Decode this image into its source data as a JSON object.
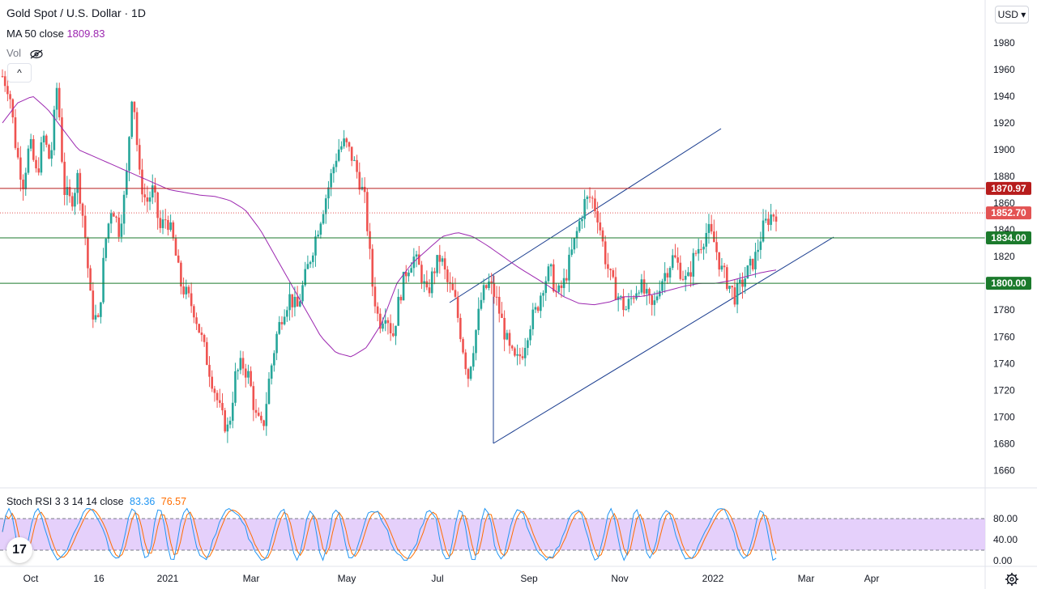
{
  "header": {
    "symbol_title": "Gold Spot / U.S. Dollar · 1D",
    "ma_label": "MA 50 close",
    "ma_value": "1809.83",
    "vol_label": "Vol",
    "collapse_glyph": "^",
    "currency_label": "USD ▾"
  },
  "indicator": {
    "label": "Stoch RSI 3 3 14 14 close",
    "k_value": "83.36",
    "d_value": "76.57",
    "axis_ticks": [
      "80.00",
      "40.00",
      "0.00"
    ],
    "upper_band": 80,
    "lower_band": 20,
    "band_color": "#e1c8fa",
    "k_color": "#2196f3",
    "d_color": "#ff6d00"
  },
  "icons": {
    "logo": "tradingview-logo-icon",
    "eye": "eye-crossed-icon",
    "settings": "gear-icon"
  },
  "chart_data": {
    "type": "line",
    "title": "Gold Spot / U.S. Dollar · 1D",
    "ylim": [
      1650,
      1995
    ],
    "y_ticks": [
      1660,
      1680,
      1700,
      1720,
      1740,
      1760,
      1780,
      1800,
      1820,
      1840,
      1860,
      1880,
      1900,
      1920,
      1940,
      1960,
      1980
    ],
    "x_tick_labels": [
      "Oct",
      "16",
      "2021",
      "Mar",
      "May",
      "Jul",
      "Sep",
      "Nov",
      "2022",
      "Mar",
      "Apr"
    ],
    "price_path": [
      1955,
      1945,
      1900,
      1875,
      1905,
      1880,
      1910,
      1890,
      1950,
      1870,
      1860,
      1880,
      1840,
      1780,
      1770,
      1830,
      1860,
      1840,
      1870,
      1950,
      1880,
      1860,
      1870,
      1840,
      1850,
      1830,
      1800,
      1790,
      1780,
      1760,
      1740,
      1720,
      1700,
      1690,
      1730,
      1740,
      1730,
      1700,
      1690,
      1730,
      1760,
      1780,
      1790,
      1780,
      1800,
      1820,
      1840,
      1860,
      1880,
      1900,
      1905,
      1895,
      1880,
      1860,
      1800,
      1770,
      1780,
      1760,
      1790,
      1810,
      1820,
      1810,
      1790,
      1810,
      1820,
      1800,
      1790,
      1760,
      1730,
      1760,
      1790,
      1800,
      1790,
      1770,
      1750,
      1740,
      1750,
      1770,
      1780,
      1800,
      1810,
      1790,
      1800,
      1820,
      1840,
      1860,
      1865,
      1850,
      1820,
      1800,
      1790,
      1780,
      1790,
      1800,
      1790,
      1780,
      1800,
      1810,
      1820,
      1810,
      1800,
      1820,
      1830,
      1840,
      1830,
      1810,
      1800,
      1790,
      1800,
      1810,
      1820,
      1840,
      1850,
      1853
    ],
    "ma50_path": [
      1920,
      1935,
      1940,
      1930,
      1915,
      1900,
      1895,
      1890,
      1885,
      1880,
      1875,
      1870,
      1868,
      1866,
      1865,
      1862,
      1855,
      1840,
      1820,
      1800,
      1780,
      1760,
      1748,
      1745,
      1752,
      1770,
      1800,
      1815,
      1825,
      1835,
      1838,
      1835,
      1828,
      1820,
      1812,
      1805,
      1798,
      1790,
      1785,
      1784,
      1786,
      1790,
      1790,
      1792,
      1795,
      1798,
      1800,
      1800,
      1802,
      1805,
      1808,
      1810
    ],
    "horizontal_levels": [
      {
        "value": 1870.97,
        "label": "1870.97",
        "color": "#b71c1c",
        "style": "solid"
      },
      {
        "value": 1852.7,
        "label": "1852.70",
        "color": "#e35353",
        "style": "dotted"
      },
      {
        "value": 1834.0,
        "label": "1834.00",
        "color": "#1b7a2c",
        "style": "solid"
      },
      {
        "value": 1800.0,
        "label": "1800.00",
        "color": "#1b7a2c",
        "style": "solid"
      }
    ],
    "channel_color": "#1a3d8f",
    "candle_up_color": "#26a69a",
    "candle_down_color": "#ef5350",
    "ma_color": "#9c27b0",
    "series": [
      {
        "name": "MA 50 close",
        "value": 1809.83
      },
      {
        "name": "Stoch RSI K",
        "value": 83.36
      },
      {
        "name": "Stoch RSI D",
        "value": 76.57
      }
    ]
  }
}
